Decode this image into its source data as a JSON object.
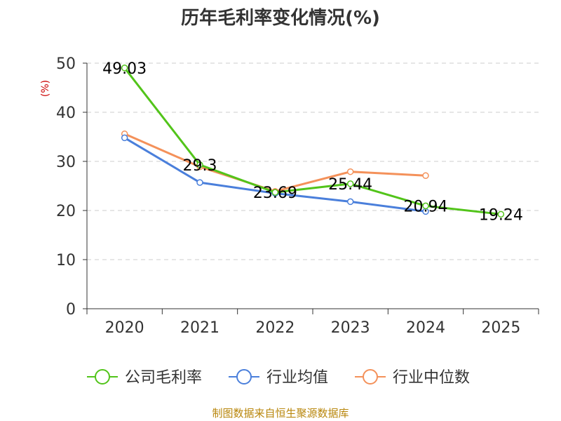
{
  "chart_data": {
    "type": "line",
    "title": "历年毛利率变化情况(%)",
    "ylabel": "(%)",
    "xlabel": "",
    "categories": [
      "2020",
      "2021",
      "2022",
      "2023",
      "2024",
      "2025"
    ],
    "ylim": [
      0,
      50
    ],
    "yticks": [
      0,
      10,
      20,
      30,
      40,
      50
    ],
    "grid": true,
    "legend_position": "bottom",
    "series": [
      {
        "name": "公司毛利率",
        "color": "#52c41a",
        "values": [
          49.03,
          29.3,
          23.69,
          25.44,
          20.94,
          19.24
        ],
        "labels": [
          "49.03",
          "29.3",
          "23.69",
          "25.44",
          "20.94",
          "19.24"
        ]
      },
      {
        "name": "行业均值",
        "color": "#4a7fdb",
        "values": [
          34.8,
          25.7,
          23.5,
          21.8,
          19.8,
          null
        ]
      },
      {
        "name": "行业中位数",
        "color": "#f4915a",
        "values": [
          35.6,
          28.9,
          23.9,
          27.9,
          27.1,
          null
        ]
      }
    ]
  },
  "source_text": "制图数据来自恒生聚源数据库"
}
